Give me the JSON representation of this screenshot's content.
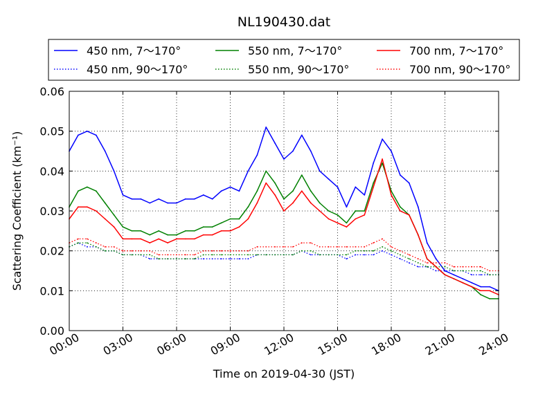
{
  "chart_data": {
    "type": "line",
    "title": "NL190430.dat",
    "xlabel": "Time on 2019-04-30 (JST)",
    "ylabel": "Scattering Coefficient (km⁻¹)",
    "xlim": [
      "00:00",
      "24:00"
    ],
    "ylim": [
      0,
      0.06
    ],
    "grid": true,
    "legend_position": "top",
    "x_ticks": [
      "00:00",
      "03:00",
      "06:00",
      "09:00",
      "12:00",
      "15:00",
      "18:00",
      "21:00",
      "24:00"
    ],
    "y_ticks": [
      "0.00",
      "0.01",
      "0.02",
      "0.03",
      "0.04",
      "0.05",
      "0.06"
    ],
    "x": [
      "00:00",
      "00:30",
      "01:00",
      "01:30",
      "02:00",
      "02:30",
      "03:00",
      "03:30",
      "04:00",
      "04:30",
      "05:00",
      "05:30",
      "06:00",
      "06:30",
      "07:00",
      "07:30",
      "08:00",
      "08:30",
      "09:00",
      "09:30",
      "10:00",
      "10:30",
      "11:00",
      "11:30",
      "12:00",
      "12:30",
      "13:00",
      "13:30",
      "14:00",
      "14:30",
      "15:00",
      "15:30",
      "16:00",
      "16:30",
      "17:00",
      "17:30",
      "18:00",
      "18:30",
      "19:00",
      "19:30",
      "20:00",
      "20:30",
      "21:00",
      "21:30",
      "22:00",
      "22:30",
      "23:00",
      "23:30",
      "24:00"
    ],
    "series": [
      {
        "name": "450 nm, 7～170°",
        "color": "#0000ff",
        "style": "solid",
        "values": [
          0.045,
          0.049,
          0.05,
          0.049,
          0.045,
          0.04,
          0.034,
          0.033,
          0.033,
          0.032,
          0.033,
          0.032,
          0.032,
          0.033,
          0.033,
          0.034,
          0.033,
          0.035,
          0.036,
          0.035,
          0.04,
          0.044,
          0.051,
          0.047,
          0.043,
          0.045,
          0.049,
          0.045,
          0.04,
          0.038,
          0.036,
          0.031,
          0.036,
          0.034,
          0.042,
          0.048,
          0.045,
          0.039,
          0.037,
          0.031,
          0.022,
          0.018,
          0.015,
          0.014,
          0.013,
          0.012,
          0.011,
          0.011,
          0.01
        ]
      },
      {
        "name": "450 nm, 90～170°",
        "color": "#0000ff",
        "style": "dotted",
        "values": [
          0.021,
          0.022,
          0.021,
          0.021,
          0.02,
          0.02,
          0.019,
          0.019,
          0.019,
          0.018,
          0.018,
          0.018,
          0.018,
          0.018,
          0.018,
          0.018,
          0.018,
          0.018,
          0.018,
          0.018,
          0.018,
          0.019,
          0.019,
          0.019,
          0.019,
          0.019,
          0.02,
          0.019,
          0.019,
          0.019,
          0.019,
          0.018,
          0.019,
          0.019,
          0.019,
          0.02,
          0.019,
          0.018,
          0.017,
          0.016,
          0.016,
          0.015,
          0.015,
          0.015,
          0.015,
          0.014,
          0.014,
          0.014,
          0.014
        ]
      },
      {
        "name": "550 nm, 7～170°",
        "color": "#008000",
        "style": "solid",
        "values": [
          0.031,
          0.035,
          0.036,
          0.035,
          0.032,
          0.029,
          0.026,
          0.025,
          0.025,
          0.024,
          0.025,
          0.024,
          0.024,
          0.025,
          0.025,
          0.026,
          0.026,
          0.027,
          0.028,
          0.028,
          0.031,
          0.035,
          0.04,
          0.037,
          0.033,
          0.035,
          0.039,
          0.035,
          0.032,
          0.03,
          0.029,
          0.027,
          0.03,
          0.03,
          0.037,
          0.042,
          0.035,
          0.031,
          0.029,
          0.024,
          0.018,
          0.016,
          0.014,
          0.013,
          0.012,
          0.011,
          0.009,
          0.008,
          0.008
        ]
      },
      {
        "name": "550 nm, 90～170°",
        "color": "#008000",
        "style": "dotted",
        "values": [
          0.021,
          0.022,
          0.022,
          0.021,
          0.02,
          0.02,
          0.019,
          0.019,
          0.019,
          0.019,
          0.018,
          0.018,
          0.018,
          0.018,
          0.018,
          0.019,
          0.019,
          0.019,
          0.019,
          0.019,
          0.019,
          0.019,
          0.019,
          0.019,
          0.019,
          0.019,
          0.02,
          0.02,
          0.019,
          0.019,
          0.019,
          0.019,
          0.02,
          0.02,
          0.02,
          0.021,
          0.02,
          0.019,
          0.018,
          0.017,
          0.016,
          0.016,
          0.016,
          0.015,
          0.015,
          0.015,
          0.015,
          0.014,
          0.014
        ]
      },
      {
        "name": "700 nm, 7～170°",
        "color": "#ff0000",
        "style": "solid",
        "values": [
          0.028,
          0.031,
          0.031,
          0.03,
          0.028,
          0.026,
          0.023,
          0.023,
          0.023,
          0.022,
          0.023,
          0.022,
          0.023,
          0.023,
          0.023,
          0.024,
          0.024,
          0.025,
          0.025,
          0.026,
          0.028,
          0.032,
          0.037,
          0.034,
          0.03,
          0.032,
          0.035,
          0.032,
          0.03,
          0.028,
          0.027,
          0.026,
          0.028,
          0.029,
          0.036,
          0.043,
          0.034,
          0.03,
          0.029,
          0.024,
          0.018,
          0.016,
          0.014,
          0.013,
          0.012,
          0.011,
          0.01,
          0.01,
          0.009
        ]
      },
      {
        "name": "700 nm, 90～170°",
        "color": "#ff0000",
        "style": "dotted",
        "values": [
          0.022,
          0.023,
          0.023,
          0.022,
          0.021,
          0.021,
          0.02,
          0.02,
          0.02,
          0.02,
          0.019,
          0.019,
          0.019,
          0.019,
          0.019,
          0.02,
          0.02,
          0.02,
          0.02,
          0.02,
          0.02,
          0.021,
          0.021,
          0.021,
          0.021,
          0.021,
          0.022,
          0.022,
          0.021,
          0.021,
          0.021,
          0.021,
          0.021,
          0.021,
          0.022,
          0.023,
          0.021,
          0.02,
          0.019,
          0.018,
          0.017,
          0.017,
          0.017,
          0.016,
          0.016,
          0.016,
          0.016,
          0.015,
          0.015
        ]
      }
    ]
  }
}
